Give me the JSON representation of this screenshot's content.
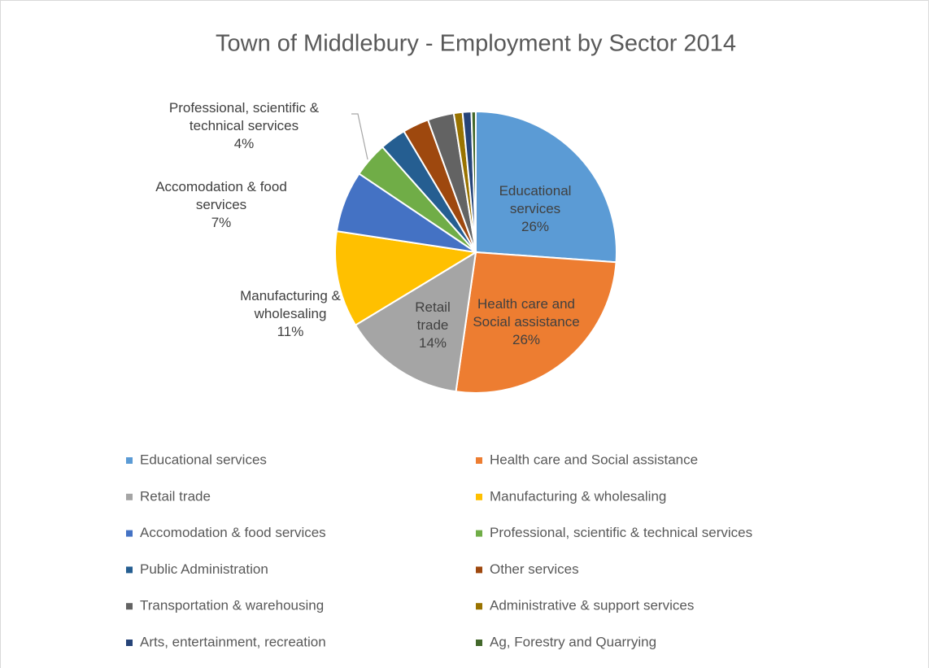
{
  "chart_data": {
    "type": "pie",
    "title": "Town of Middlebury - Employment by Sector 2014",
    "categories": [
      "Educational services",
      "Health care and Social assistance",
      "Retail trade",
      "Manufacturing & wholesaling",
      "Accomodation & food services",
      "Professional, scientific & technical services",
      "Public Administration",
      "Other services",
      "Transportation & warehousing",
      "Administrative & support services",
      "Arts, entertainment, recreation",
      "Ag, Forestry and Quarrying"
    ],
    "values": [
      26,
      26,
      14,
      11,
      7,
      4,
      3,
      3,
      3,
      1,
      1,
      0.5
    ],
    "value_labels": [
      "26%",
      "26%",
      "14%",
      "11%",
      "7%",
      "4%",
      null,
      null,
      null,
      null,
      null,
      null
    ],
    "colors": [
      "#5b9bd5",
      "#ed7d31",
      "#a5a5a5",
      "#ffc000",
      "#4472c4",
      "#70ad47",
      "#255e91",
      "#9e480e",
      "#636363",
      "#997300",
      "#264478",
      "#43682b"
    ],
    "legend": "bottom"
  }
}
